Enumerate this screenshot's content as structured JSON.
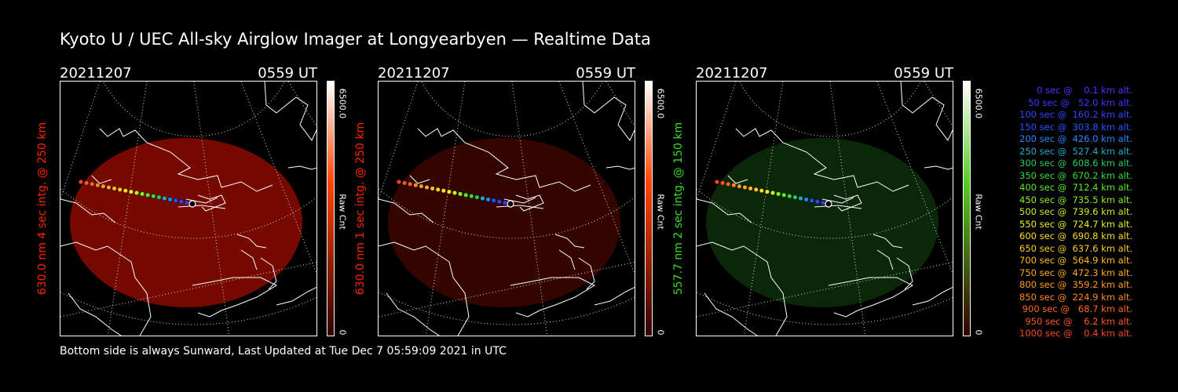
{
  "title": "Kyoto U / UEC All-sky Airglow Imager at Longyearbyen — Realtime Data",
  "footer": "Bottom side is always Sunward, Last Updated at Tue Dec  7 05:59:09 2021 in UTC",
  "panels": [
    {
      "date": "20211207",
      "time": "0559 UT",
      "ylabel": "630.0 nm 4 sec intg. @ 250 km",
      "ylabel_color": "#ff2200",
      "cbar_max": "6500.0",
      "cbar_min": "0",
      "cbar_unit": "Raw Cnt",
      "fill": "#8a0a00",
      "fill_opacity": 0.85,
      "cbar_color": "#ff4400"
    },
    {
      "date": "20211207",
      "time": "0559 UT",
      "ylabel": "630.0 nm 1 sec intg. @ 250 km",
      "ylabel_color": "#ff2200",
      "cbar_max": "6500.0",
      "cbar_min": "0",
      "cbar_unit": "Raw Cnt",
      "fill": "#3a0500",
      "fill_opacity": 0.9,
      "cbar_color": "#ff4400"
    },
    {
      "date": "20211207",
      "time": "0559 UT",
      "ylabel": "557.7 nm 2 sec intg. @ 150 km",
      "ylabel_color": "#33dd22",
      "cbar_max": "6500.0",
      "cbar_min": "0",
      "cbar_unit": "Raw Cnt",
      "fill": "#0b2a08",
      "fill_opacity": 0.95,
      "cbar_color": "#55cc22"
    }
  ],
  "legend": [
    {
      "text": "   0 sec @    0.1 km alt.",
      "color": "#5a2bff"
    },
    {
      "text": "  50 sec @   52.0 km alt.",
      "color": "#4433ff"
    },
    {
      "text": " 100 sec @  160.2 km alt.",
      "color": "#3344ff"
    },
    {
      "text": " 150 sec @  303.8 km alt.",
      "color": "#2255ff"
    },
    {
      "text": " 200 sec @  426.0 km alt.",
      "color": "#2288ff"
    },
    {
      "text": " 250 sec @  527.4 km alt.",
      "color": "#22aacc"
    },
    {
      "text": " 300 sec @  608.6 km alt.",
      "color": "#22cc66"
    },
    {
      "text": " 350 sec @  670.2 km alt.",
      "color": "#33dd33"
    },
    {
      "text": " 400 sec @  712.4 km alt.",
      "color": "#55ee22"
    },
    {
      "text": " 450 sec @  735.5 km alt.",
      "color": "#88ee22"
    },
    {
      "text": " 500 sec @  739.6 km alt.",
      "color": "#ccee22"
    },
    {
      "text": " 550 sec @  724.7 km alt.",
      "color": "#eeee22"
    },
    {
      "text": " 600 sec @  690.8 km alt.",
      "color": "#ffdd22"
    },
    {
      "text": " 650 sec @  637.6 km alt.",
      "color": "#ffcc22"
    },
    {
      "text": " 700 sec @  564.9 km alt.",
      "color": "#ffbb22"
    },
    {
      "text": " 750 sec @  472.3 km alt.",
      "color": "#ffaa22"
    },
    {
      "text": " 800 sec @  359.2 km alt.",
      "color": "#ff9922"
    },
    {
      "text": " 850 sec @  224.9 km alt.",
      "color": "#ff8822"
    },
    {
      "text": " 900 sec @   68.7 km alt.",
      "color": "#ff6622"
    },
    {
      "text": " 950 sec @    6.2 km alt.",
      "color": "#ff5522"
    },
    {
      "text": "1000 sec @    0.4 km alt.",
      "color": "#ff4422"
    }
  ]
}
